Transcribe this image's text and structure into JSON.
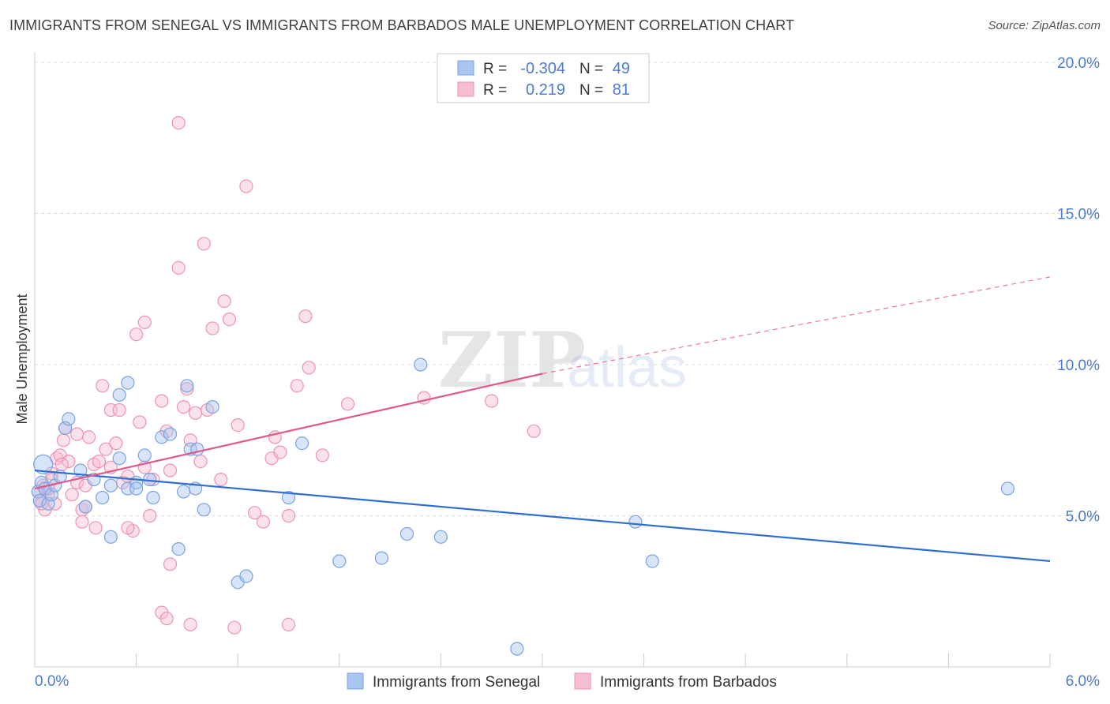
{
  "title": "IMMIGRANTS FROM SENEGAL VS IMMIGRANTS FROM BARBADOS MALE UNEMPLOYMENT CORRELATION CHART",
  "source": "Source: ZipAtlas.com",
  "watermark": {
    "zip": "ZIP",
    "atlas": "atlas"
  },
  "colors": {
    "senegal_fill": "#a9c6f0",
    "senegal_stroke": "#7aa3e0",
    "senegal_line": "#2f6fd1",
    "barbados_fill": "#f6bcd0",
    "barbados_stroke": "#ec94b3",
    "barbados_line": "#e0588a",
    "axis_text": "#4a7bd0",
    "grid": "#dddddd"
  },
  "legend_top": {
    "rows": [
      {
        "r_label": "R =",
        "r_value": "-0.304",
        "n_label": "N =",
        "n_value": "49"
      },
      {
        "r_label": "R =",
        "r_value": "0.219",
        "n_label": "N =",
        "n_value": "81"
      }
    ]
  },
  "chart_data": {
    "type": "scatter",
    "title": "IMMIGRANTS FROM SENEGAL VS IMMIGRANTS FROM BARBADOS MALE UNEMPLOYMENT CORRELATION CHART",
    "xlabel": "",
    "ylabel": "Male Unemployment",
    "xlim": [
      0,
      6.0
    ],
    "ylim": [
      0,
      20.0
    ],
    "x_tick_labels": [
      "0.0%",
      "6.0%"
    ],
    "y_ticks": [
      5,
      10,
      15,
      20
    ],
    "y_tick_labels": [
      "5.0%",
      "10.0%",
      "15.0%",
      "20.0%"
    ],
    "legend_position": "top-center",
    "series": [
      {
        "name": "Immigrants from Senegal",
        "color_key": "senegal",
        "R": -0.304,
        "N": 49,
        "trend": {
          "x0": 0.0,
          "y0": 6.5,
          "x1": 6.0,
          "y1": 3.5
        },
        "points": [
          [
            0.05,
            6.7
          ],
          [
            0.02,
            5.8
          ],
          [
            0.04,
            6.1
          ],
          [
            0.03,
            5.5
          ],
          [
            0.06,
            5.9
          ],
          [
            0.08,
            5.4
          ],
          [
            0.1,
            5.7
          ],
          [
            0.12,
            6.0
          ],
          [
            0.15,
            6.3
          ],
          [
            0.18,
            7.9
          ],
          [
            0.27,
            6.5
          ],
          [
            0.3,
            5.3
          ],
          [
            0.35,
            6.2
          ],
          [
            0.4,
            5.6
          ],
          [
            0.45,
            6.0
          ],
          [
            0.5,
            6.9
          ],
          [
            0.55,
            5.9
          ],
          [
            0.6,
            6.1
          ],
          [
            0.7,
            5.6
          ],
          [
            0.75,
            7.6
          ],
          [
            0.8,
            7.7
          ],
          [
            0.88,
            5.8
          ],
          [
            0.92,
            7.2
          ],
          [
            0.96,
            7.2
          ],
          [
            0.2,
            8.2
          ],
          [
            0.55,
            9.4
          ],
          [
            0.9,
            9.3
          ],
          [
            0.5,
            9.0
          ],
          [
            1.0,
            5.2
          ],
          [
            1.05,
            8.6
          ],
          [
            0.65,
            7.0
          ],
          [
            0.68,
            6.2
          ],
          [
            0.45,
            4.3
          ],
          [
            0.85,
            3.9
          ],
          [
            0.95,
            5.9
          ],
          [
            1.2,
            2.8
          ],
          [
            1.25,
            3.0
          ],
          [
            1.5,
            5.6
          ],
          [
            1.58,
            7.4
          ],
          [
            1.8,
            3.5
          ],
          [
            2.05,
            3.6
          ],
          [
            2.2,
            4.4
          ],
          [
            2.28,
            10.0
          ],
          [
            2.4,
            4.3
          ],
          [
            3.55,
            4.8
          ],
          [
            3.65,
            3.5
          ],
          [
            5.75,
            5.9
          ],
          [
            2.85,
            0.6
          ],
          [
            0.6,
            5.9
          ]
        ]
      },
      {
        "name": "Immigrants from Barbados",
        "color_key": "barbados",
        "R": 0.219,
        "N": 81,
        "trend": {
          "x0": 0.0,
          "y0": 5.9,
          "x1": 3.0,
          "y1": 9.7,
          "dash_x1": 6.0,
          "dash_y1": 12.9
        },
        "points": [
          [
            0.02,
            5.8
          ],
          [
            0.03,
            5.5
          ],
          [
            0.05,
            6.0
          ],
          [
            0.06,
            5.2
          ],
          [
            0.08,
            5.7
          ],
          [
            0.1,
            6.4
          ],
          [
            0.12,
            5.4
          ],
          [
            0.13,
            6.9
          ],
          [
            0.15,
            7.0
          ],
          [
            0.17,
            7.5
          ],
          [
            0.18,
            7.9
          ],
          [
            0.2,
            6.8
          ],
          [
            0.22,
            5.7
          ],
          [
            0.25,
            6.1
          ],
          [
            0.28,
            5.2
          ],
          [
            0.3,
            6.0
          ],
          [
            0.32,
            7.6
          ],
          [
            0.35,
            6.7
          ],
          [
            0.38,
            6.8
          ],
          [
            0.4,
            9.3
          ],
          [
            0.42,
            7.2
          ],
          [
            0.45,
            8.5
          ],
          [
            0.48,
            7.4
          ],
          [
            0.5,
            8.5
          ],
          [
            0.52,
            6.1
          ],
          [
            0.55,
            6.3
          ],
          [
            0.58,
            4.5
          ],
          [
            0.6,
            11.0
          ],
          [
            0.62,
            8.1
          ],
          [
            0.65,
            11.4
          ],
          [
            0.68,
            5.0
          ],
          [
            0.7,
            6.2
          ],
          [
            0.75,
            8.8
          ],
          [
            0.78,
            7.8
          ],
          [
            0.8,
            6.5
          ],
          [
            0.85,
            13.2
          ],
          [
            0.88,
            8.6
          ],
          [
            0.9,
            9.2
          ],
          [
            0.92,
            7.5
          ],
          [
            0.95,
            8.4
          ],
          [
            0.98,
            6.8
          ],
          [
            1.0,
            14.0
          ],
          [
            1.05,
            11.2
          ],
          [
            1.1,
            6.2
          ],
          [
            1.12,
            12.1
          ],
          [
            1.15,
            11.5
          ],
          [
            1.2,
            8.0
          ],
          [
            1.25,
            15.9
          ],
          [
            1.3,
            5.1
          ],
          [
            1.35,
            4.8
          ],
          [
            1.4,
            6.9
          ],
          [
            1.45,
            7.1
          ],
          [
            1.5,
            5.0
          ],
          [
            1.55,
            9.3
          ],
          [
            1.6,
            11.6
          ],
          [
            1.62,
            9.9
          ],
          [
            1.7,
            7.0
          ],
          [
            1.85,
            8.7
          ],
          [
            2.3,
            8.9
          ],
          [
            2.7,
            8.8
          ],
          [
            2.95,
            7.8
          ],
          [
            0.85,
            18.0
          ],
          [
            0.75,
            1.8
          ],
          [
            0.78,
            1.6
          ],
          [
            0.92,
            1.4
          ],
          [
            1.18,
            1.3
          ],
          [
            1.5,
            1.4
          ],
          [
            0.8,
            3.4
          ],
          [
            0.28,
            4.8
          ],
          [
            0.25,
            7.7
          ],
          [
            0.08,
            5.9
          ],
          [
            0.04,
            5.4
          ],
          [
            0.1,
            6.2
          ],
          [
            0.55,
            4.6
          ],
          [
            0.65,
            6.6
          ],
          [
            0.45,
            6.6
          ],
          [
            1.02,
            8.5
          ],
          [
            1.42,
            7.6
          ],
          [
            0.3,
            5.3
          ],
          [
            0.36,
            4.6
          ],
          [
            0.16,
            6.7
          ]
        ]
      }
    ]
  }
}
